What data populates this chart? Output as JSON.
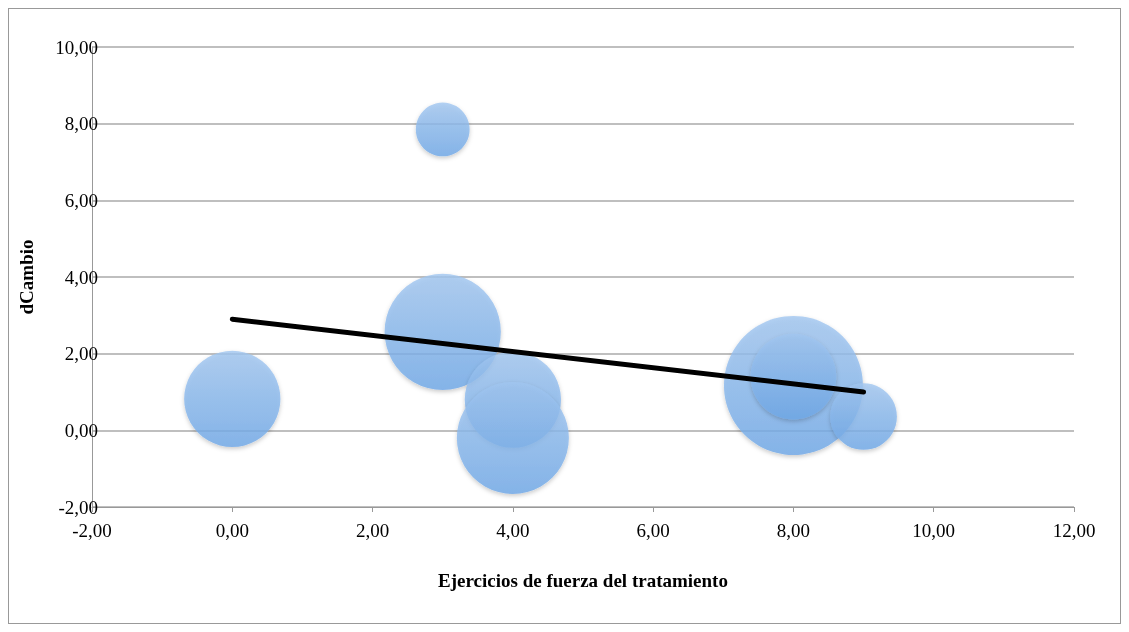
{
  "chart_data": {
    "type": "bubble",
    "xlabel": "Ejercicios de fuerza del tratamiento",
    "ylabel": "dCambio",
    "series": [
      {
        "color": "#6fa8e8",
        "x": [
          0,
          3,
          3,
          4,
          4,
          8,
          8,
          9
        ],
        "values": [
          0.82,
          7.85,
          2.57,
          0.8,
          -0.2,
          1.17,
          1.4,
          0.36
        ],
        "sizes": [
          0.48,
          0.15,
          0.7,
          0.48,
          0.65,
          1,
          0.38,
          0.23
        ]
      },
      {
        "type": "line",
        "color": "#000000",
        "x": [
          0,
          9
        ],
        "values": [
          2.9,
          1.0
        ]
      }
    ],
    "xlim": [
      -2,
      12
    ],
    "xticks": [
      {
        "value": -2,
        "label": "-2,00"
      },
      {
        "value": 0,
        "label": "0,00"
      },
      {
        "value": 2,
        "label": "2,00"
      },
      {
        "value": 4,
        "label": "4,00"
      },
      {
        "value": 6,
        "label": "6,00"
      },
      {
        "value": 8,
        "label": "8,00"
      },
      {
        "value": 10,
        "label": "10,00"
      },
      {
        "value": 12,
        "label": "12,00"
      }
    ],
    "ylim": [
      -2,
      10
    ],
    "yticks": [
      {
        "value": -2,
        "label": "-2,00"
      },
      {
        "value": 0,
        "label": "0,00"
      },
      {
        "value": 2,
        "label": "2,00"
      },
      {
        "value": 4,
        "label": "4,00"
      },
      {
        "value": 6,
        "label": "6,00"
      },
      {
        "value": 8,
        "label": "8,00"
      },
      {
        "value": 10,
        "label": "10,00"
      }
    ],
    "grid": "y",
    "line_style": "solid"
  }
}
